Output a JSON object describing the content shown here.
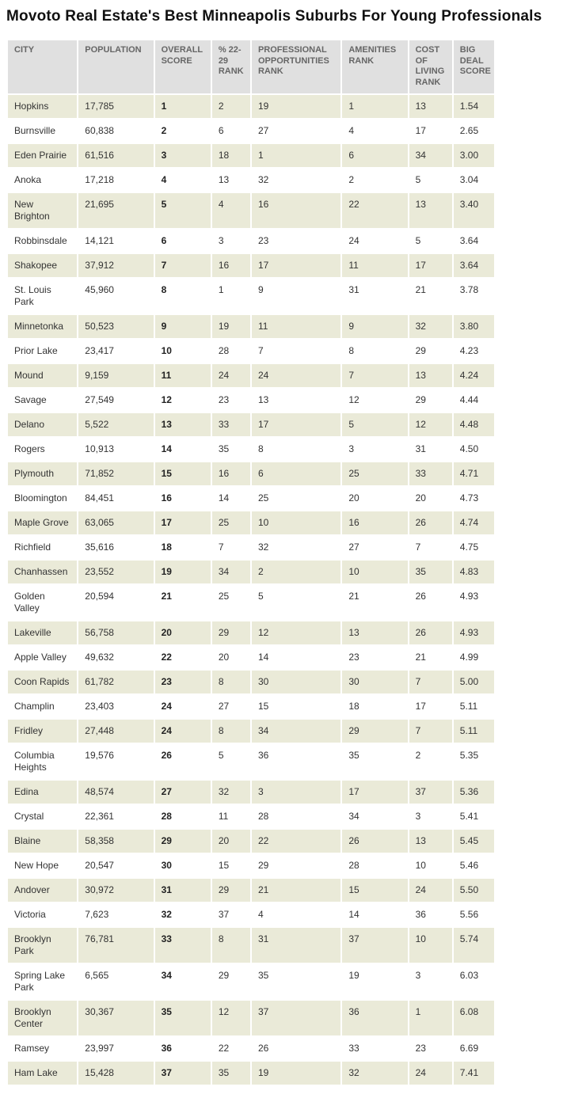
{
  "colors": {
    "header_bg": "#e0e0e0",
    "stripe_bg": "#eaead8",
    "header_text": "#666666",
    "body_text": "#333333",
    "title_text": "#111111"
  },
  "chart_data": {
    "type": "table",
    "title": "Movoto Real Estate's Best Minneapolis Suburbs For Young Professionals",
    "columns": [
      "CITY",
      "POPULATION",
      "OVERALL SCORE",
      "% 22-29 RANK",
      "PROFESSIONAL OPPORTUNITIES RANK",
      "AMENITIES RANK",
      "COST OF LIVING RANK",
      "BIG DEAL SCORE"
    ],
    "rows": [
      [
        "Hopkins",
        "17,785",
        "1",
        "2",
        "19",
        "1",
        "13",
        "1.54"
      ],
      [
        "Burnsville",
        "60,838",
        "2",
        "6",
        "27",
        "4",
        "17",
        "2.65"
      ],
      [
        "Eden Prairie",
        "61,516",
        "3",
        "18",
        "1",
        "6",
        "34",
        "3.00"
      ],
      [
        "Anoka",
        "17,218",
        "4",
        "13",
        "32",
        "2",
        "5",
        "3.04"
      ],
      [
        "New Brighton",
        "21,695",
        "5",
        "4",
        "16",
        "22",
        "13",
        "3.40"
      ],
      [
        "Robbinsdale",
        "14,121",
        "6",
        "3",
        "23",
        "24",
        "5",
        "3.64"
      ],
      [
        "Shakopee",
        "37,912",
        "7",
        "16",
        "17",
        "11",
        "17",
        "3.64"
      ],
      [
        "St. Louis Park",
        "45,960",
        "8",
        "1",
        "9",
        "31",
        "21",
        "3.78"
      ],
      [
        "Minnetonka",
        "50,523",
        "9",
        "19",
        "11",
        "9",
        "32",
        "3.80"
      ],
      [
        "Prior Lake",
        "23,417",
        "10",
        "28",
        "7",
        "8",
        "29",
        "4.23"
      ],
      [
        "Mound",
        "9,159",
        "11",
        "24",
        "24",
        "7",
        "13",
        "4.24"
      ],
      [
        "Savage",
        "27,549",
        "12",
        "23",
        "13",
        "12",
        "29",
        "4.44"
      ],
      [
        "Delano",
        "5,522",
        "13",
        "33",
        "17",
        "5",
        "12",
        "4.48"
      ],
      [
        "Rogers",
        "10,913",
        "14",
        "35",
        "8",
        "3",
        "31",
        "4.50"
      ],
      [
        "Plymouth",
        "71,852",
        "15",
        "16",
        "6",
        "25",
        "33",
        "4.71"
      ],
      [
        "Bloomington",
        "84,451",
        "16",
        "14",
        "25",
        "20",
        "20",
        "4.73"
      ],
      [
        "Maple Grove",
        "63,065",
        "17",
        "25",
        "10",
        "16",
        "26",
        "4.74"
      ],
      [
        "Richfield",
        "35,616",
        "18",
        "7",
        "32",
        "27",
        "7",
        "4.75"
      ],
      [
        "Chanhassen",
        "23,552",
        "19",
        "34",
        "2",
        "10",
        "35",
        "4.83"
      ],
      [
        "Golden Valley",
        "20,594",
        "21",
        "25",
        "5",
        "21",
        "26",
        "4.93"
      ],
      [
        "Lakeville",
        "56,758",
        "20",
        "29",
        "12",
        "13",
        "26",
        "4.93"
      ],
      [
        "Apple Valley",
        "49,632",
        "22",
        "20",
        "14",
        "23",
        "21",
        "4.99"
      ],
      [
        "Coon Rapids",
        "61,782",
        "23",
        "8",
        "30",
        "30",
        "7",
        "5.00"
      ],
      [
        "Champlin",
        "23,403",
        "24",
        "27",
        "15",
        "18",
        "17",
        "5.11"
      ],
      [
        "Fridley",
        "27,448",
        "24",
        "8",
        "34",
        "29",
        "7",
        "5.11"
      ],
      [
        "Columbia Heights",
        "19,576",
        "26",
        "5",
        "36",
        "35",
        "2",
        "5.35"
      ],
      [
        "Edina",
        "48,574",
        "27",
        "32",
        "3",
        "17",
        "37",
        "5.36"
      ],
      [
        "Crystal",
        "22,361",
        "28",
        "11",
        "28",
        "34",
        "3",
        "5.41"
      ],
      [
        "Blaine",
        "58,358",
        "29",
        "20",
        "22",
        "26",
        "13",
        "5.45"
      ],
      [
        "New Hope",
        "20,547",
        "30",
        "15",
        "29",
        "28",
        "10",
        "5.46"
      ],
      [
        "Andover",
        "30,972",
        "31",
        "29",
        "21",
        "15",
        "24",
        "5.50"
      ],
      [
        "Victoria",
        "7,623",
        "32",
        "37",
        "4",
        "14",
        "36",
        "5.56"
      ],
      [
        "Brooklyn Park",
        "76,781",
        "33",
        "8",
        "31",
        "37",
        "10",
        "5.74"
      ],
      [
        "Spring Lake Park",
        "6,565",
        "34",
        "29",
        "35",
        "19",
        "3",
        "6.03"
      ],
      [
        "Brooklyn Center",
        "30,367",
        "35",
        "12",
        "37",
        "36",
        "1",
        "6.08"
      ],
      [
        "Ramsey",
        "23,997",
        "36",
        "22",
        "26",
        "33",
        "23",
        "6.69"
      ],
      [
        "Ham Lake",
        "15,428",
        "37",
        "35",
        "19",
        "32",
        "24",
        "7.41"
      ]
    ]
  }
}
